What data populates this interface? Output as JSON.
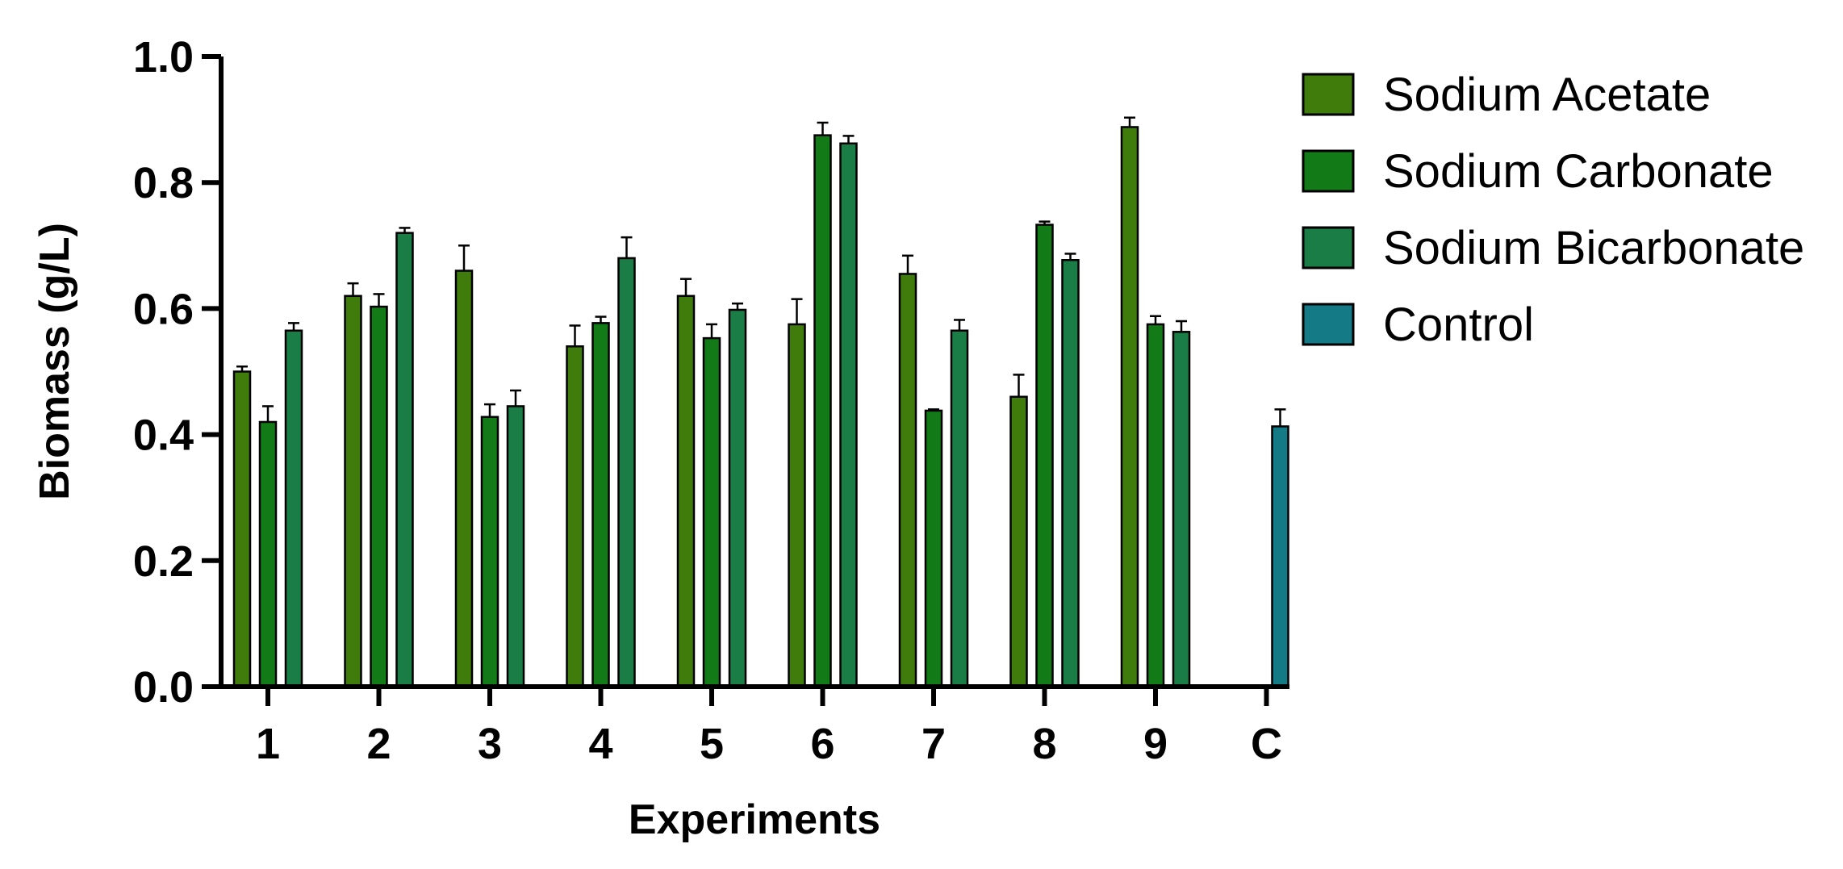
{
  "chart_data": {
    "type": "bar",
    "xlabel": "Experiments",
    "ylabel": "Biomass (g/L)",
    "ylim": [
      0,
      1.0
    ],
    "yticks": [
      "0.0",
      "0.2",
      "0.4",
      "0.6",
      "0.8",
      "1.0"
    ],
    "categories": [
      "1",
      "2",
      "3",
      "4",
      "5",
      "6",
      "7",
      "8",
      "9",
      "C"
    ],
    "legend_position": "right",
    "series": [
      {
        "name": "Sodium Acetate",
        "color": "#3f7c0b",
        "values": [
          0.5,
          0.62,
          0.66,
          0.54,
          0.62,
          0.575,
          0.655,
          0.46,
          0.888,
          null
        ],
        "errors": [
          0.008,
          0.02,
          0.04,
          0.033,
          0.027,
          0.04,
          0.029,
          0.035,
          0.015,
          null
        ]
      },
      {
        "name": "Sodium Carbonate",
        "color": "#127a16",
        "values": [
          0.42,
          0.603,
          0.428,
          0.577,
          0.553,
          0.875,
          0.438,
          0.733,
          0.575,
          null
        ],
        "errors": [
          0.025,
          0.02,
          0.02,
          0.01,
          0.022,
          0.02,
          0.002,
          0.005,
          0.013,
          null
        ]
      },
      {
        "name": "Sodium Bicarbonate",
        "color": "#1a7d46",
        "values": [
          0.565,
          0.72,
          0.445,
          0.68,
          0.598,
          0.862,
          0.565,
          0.677,
          0.563,
          null
        ],
        "errors": [
          0.012,
          0.008,
          0.025,
          0.033,
          0.01,
          0.012,
          0.017,
          0.01,
          0.017,
          null
        ]
      },
      {
        "name": "Control",
        "color": "#137a86",
        "values": [
          null,
          null,
          null,
          null,
          null,
          null,
          null,
          null,
          null,
          0.413
        ],
        "errors": [
          null,
          null,
          null,
          null,
          null,
          null,
          null,
          null,
          null,
          0.027
        ]
      }
    ]
  }
}
